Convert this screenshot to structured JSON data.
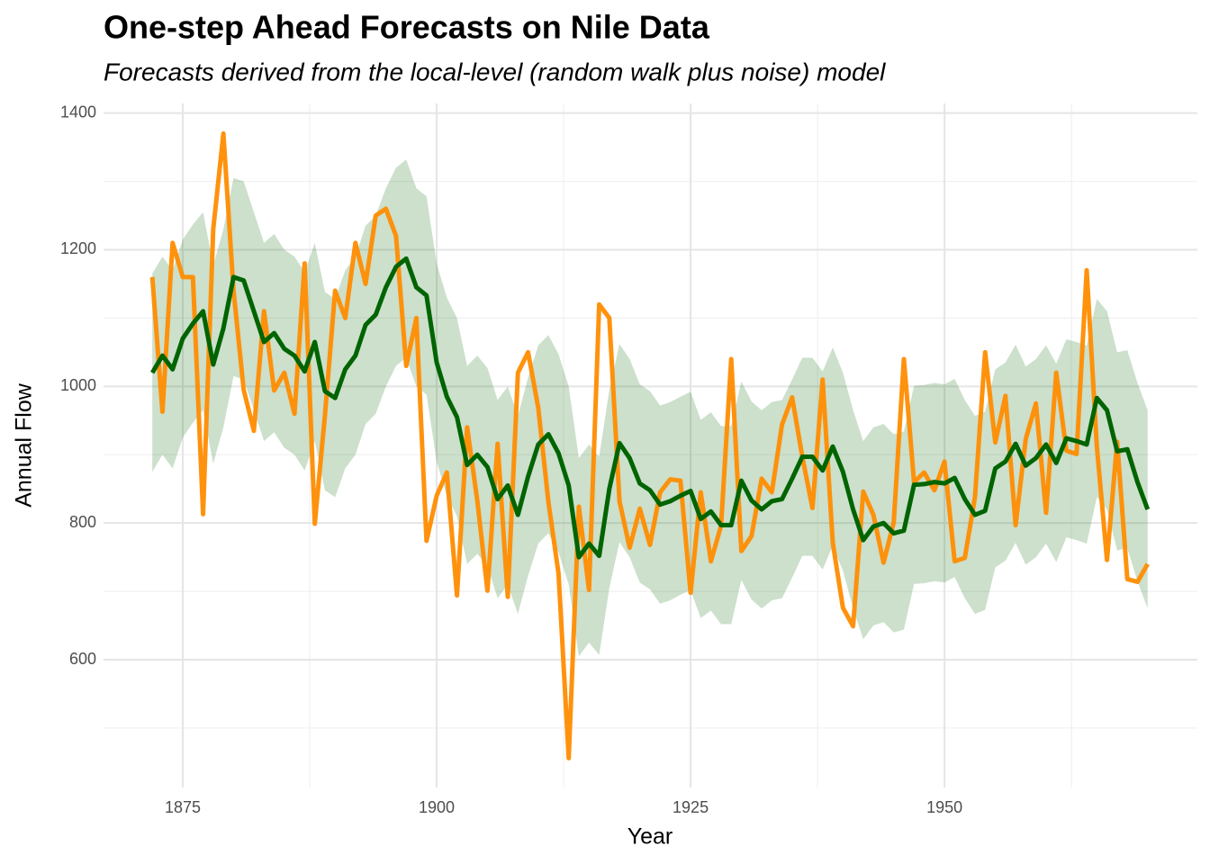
{
  "chart_data": {
    "type": "line",
    "title": "One-step Ahead Forecasts on Nile Data",
    "subtitle": "Forecasts derived from the local-level (random walk plus noise) model",
    "xlabel": "Year",
    "ylabel": "Annual Flow",
    "x": [
      1872,
      1873,
      1874,
      1875,
      1876,
      1877,
      1878,
      1879,
      1880,
      1881,
      1882,
      1883,
      1884,
      1885,
      1886,
      1887,
      1888,
      1889,
      1890,
      1891,
      1892,
      1893,
      1894,
      1895,
      1896,
      1897,
      1898,
      1899,
      1900,
      1901,
      1902,
      1903,
      1904,
      1905,
      1906,
      1907,
      1908,
      1909,
      1910,
      1911,
      1912,
      1913,
      1914,
      1915,
      1916,
      1917,
      1918,
      1919,
      1920,
      1921,
      1922,
      1923,
      1924,
      1925,
      1926,
      1927,
      1928,
      1929,
      1930,
      1931,
      1932,
      1933,
      1934,
      1935,
      1936,
      1937,
      1938,
      1939,
      1940,
      1941,
      1942,
      1943,
      1944,
      1945,
      1946,
      1947,
      1948,
      1949,
      1950,
      1951,
      1952,
      1953,
      1954,
      1955,
      1956,
      1957,
      1958,
      1959,
      1960,
      1961,
      1962,
      1963,
      1964,
      1965,
      1966,
      1967,
      1968,
      1969,
      1970
    ],
    "observed": {
      "color": "#ff8c00",
      "values": [
        1160,
        963,
        1210,
        1160,
        1160,
        813,
        1230,
        1370,
        1140,
        995,
        935,
        1110,
        994,
        1020,
        960,
        1180,
        799,
        958,
        1140,
        1100,
        1210,
        1150,
        1250,
        1260,
        1220,
        1030,
        1100,
        774,
        840,
        874,
        694,
        940,
        833,
        701,
        916,
        692,
        1020,
        1050,
        969,
        831,
        726,
        456,
        824,
        702,
        1120,
        1100,
        832,
        764,
        821,
        768,
        845,
        864,
        862,
        698,
        845,
        744,
        796,
        1040,
        759,
        781,
        865,
        845,
        944,
        984,
        897,
        822,
        1010,
        771,
        676,
        649,
        846,
        812,
        742,
        801,
        1040,
        860,
        874,
        848,
        890,
        744,
        749,
        838,
        1050,
        918,
        986,
        797,
        923,
        975,
        815,
        1020,
        906,
        901,
        1170,
        912,
        746,
        919,
        718,
        714,
        740
      ]
    },
    "forecast": {
      "color": "#006400",
      "values": [
        1020,
        1045,
        1025,
        1070,
        1092,
        1110,
        1032,
        1085,
        1160,
        1155,
        1110,
        1065,
        1078,
        1055,
        1045,
        1022,
        1065,
        993,
        983,
        1025,
        1045,
        1090,
        1105,
        1145,
        1175,
        1187,
        1145,
        1133,
        1035,
        985,
        955,
        885,
        900,
        882,
        835,
        855,
        812,
        868,
        915,
        930,
        902,
        855,
        750,
        770,
        752,
        850,
        917,
        895,
        858,
        848,
        827,
        832,
        840,
        847,
        806,
        817,
        797,
        797,
        862,
        833,
        820,
        832,
        835,
        865,
        897,
        897,
        877,
        912,
        875,
        820,
        775,
        795,
        800,
        785,
        789,
        856,
        857,
        860,
        858,
        866,
        835,
        812,
        818,
        880,
        890,
        916,
        884,
        895,
        915,
        888,
        924,
        920,
        915,
        983,
        965,
        905,
        908,
        860,
        820
      ]
    },
    "band": {
      "color": "#006400",
      "lower": [
        875,
        900,
        880,
        925,
        947,
        965,
        887,
        940,
        1015,
        1010,
        965,
        920,
        933,
        910,
        900,
        877,
        920,
        848,
        838,
        880,
        900,
        945,
        960,
        1000,
        1030,
        1042,
        1000,
        988,
        890,
        840,
        810,
        740,
        755,
        737,
        690,
        710,
        667,
        723,
        770,
        785,
        757,
        710,
        605,
        625,
        607,
        705,
        772,
        750,
        713,
        703,
        682,
        687,
        695,
        702,
        661,
        672,
        652,
        652,
        717,
        688,
        675,
        687,
        690,
        720,
        752,
        752,
        732,
        767,
        730,
        675,
        630,
        650,
        655,
        640,
        644,
        711,
        712,
        715,
        713,
        721,
        690,
        667,
        673,
        735,
        745,
        771,
        739,
        750,
        770,
        743,
        779,
        775,
        770,
        838,
        820,
        760,
        763,
        715,
        675
      ],
      "upper": [
        1165,
        1190,
        1170,
        1215,
        1237,
        1255,
        1177,
        1230,
        1305,
        1300,
        1255,
        1210,
        1223,
        1200,
        1190,
        1167,
        1210,
        1138,
        1128,
        1170,
        1190,
        1235,
        1250,
        1290,
        1320,
        1332,
        1290,
        1278,
        1180,
        1130,
        1100,
        1030,
        1045,
        1027,
        980,
        1000,
        957,
        1013,
        1060,
        1075,
        1047,
        1000,
        895,
        915,
        897,
        995,
        1062,
        1040,
        1003,
        993,
        972,
        977,
        985,
        992,
        951,
        962,
        942,
        942,
        1007,
        978,
        965,
        977,
        980,
        1010,
        1042,
        1042,
        1022,
        1057,
        1020,
        965,
        920,
        940,
        945,
        930,
        934,
        1001,
        1002,
        1005,
        1003,
        1011,
        980,
        957,
        963,
        1025,
        1035,
        1061,
        1029,
        1040,
        1060,
        1033,
        1069,
        1065,
        1060,
        1128,
        1110,
        1050,
        1053,
        1005,
        965
      ]
    },
    "xlim": [
      1867.2,
      1974.9
    ],
    "ylim": [
      413,
      1414
    ],
    "xticks": [
      1875,
      1900,
      1925,
      1950
    ],
    "yticks": [
      600,
      800,
      1000,
      1200,
      1400
    ],
    "xminor": [
      1887.5,
      1912.5,
      1937.5,
      1962.5
    ],
    "yminor": [
      500,
      700,
      900,
      1100,
      1300
    ],
    "grid": true
  }
}
